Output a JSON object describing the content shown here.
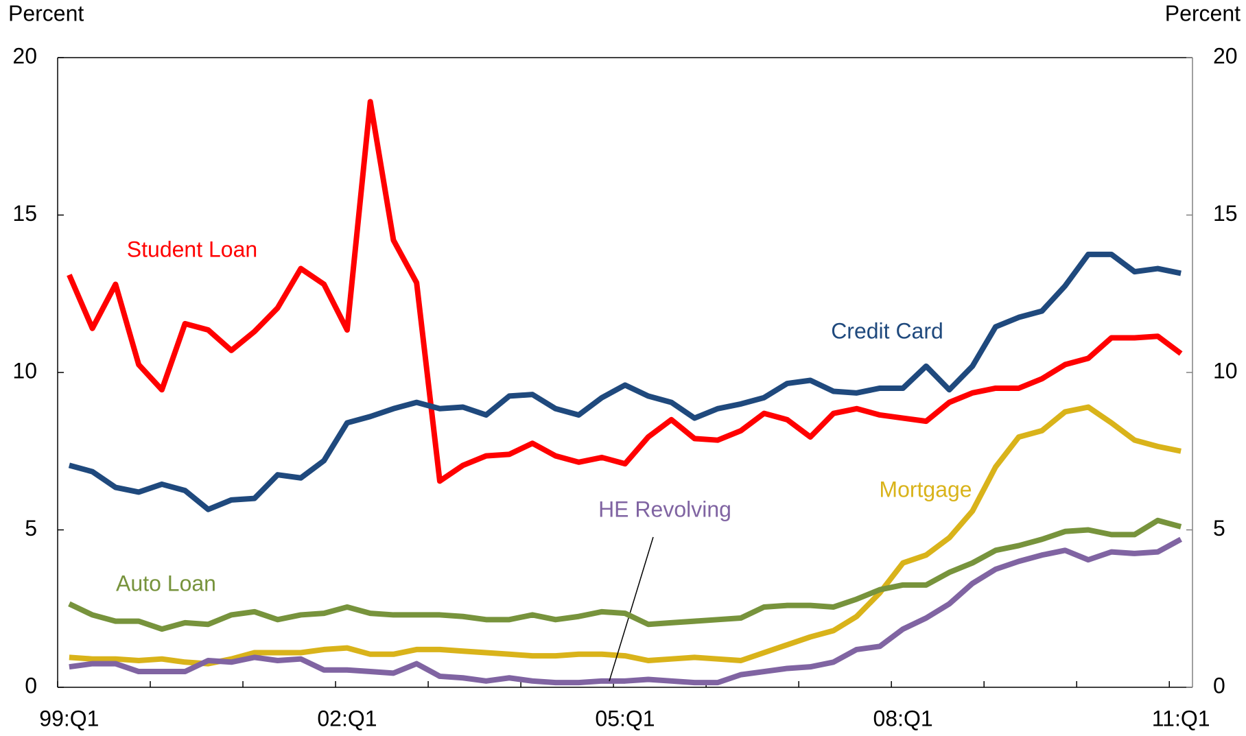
{
  "chart_data": {
    "type": "line",
    "ylabel": "Percent",
    "y2label": "Percent",
    "categories": [
      "99:Q1",
      null,
      null,
      null,
      null,
      null,
      null,
      null,
      null,
      null,
      null,
      null,
      "02:Q1",
      null,
      null,
      null,
      null,
      null,
      null,
      null,
      null,
      null,
      null,
      null,
      "05:Q1",
      null,
      null,
      null,
      null,
      null,
      null,
      null,
      null,
      null,
      null,
      null,
      "08:Q1",
      null,
      null,
      null,
      null,
      null,
      null,
      null,
      null,
      null,
      null,
      null,
      "11:Q1"
    ],
    "ylim": [
      0,
      20
    ],
    "yticks": [
      0,
      5,
      10,
      15,
      20
    ],
    "y2lim": [
      0,
      20
    ],
    "y2ticks": [
      0,
      5,
      10,
      15,
      20
    ],
    "grid": false,
    "series": [
      {
        "name": "Student Loan",
        "color": "#ff0000",
        "values": [
          13.1,
          11.4,
          12.8,
          10.25,
          9.45,
          11.55,
          11.35,
          10.7,
          11.3,
          12.05,
          13.3,
          12.8,
          11.35,
          18.6,
          14.2,
          12.85,
          6.55,
          7.05,
          7.35,
          7.4,
          7.75,
          7.35,
          7.15,
          7.3,
          7.1,
          7.95,
          8.5,
          7.9,
          7.85,
          8.15,
          8.7,
          8.5,
          7.95,
          8.7,
          8.85,
          8.65,
          8.55,
          8.45,
          9.05,
          9.35,
          9.5,
          9.5,
          9.8,
          10.25,
          10.45,
          11.1,
          11.1,
          11.15,
          10.6
        ]
      },
      {
        "name": "Credit Card",
        "color": "#1f497d",
        "values": [
          7.05,
          6.85,
          6.35,
          6.2,
          6.45,
          6.25,
          5.65,
          5.95,
          6.0,
          6.75,
          6.65,
          7.2,
          8.4,
          8.6,
          8.85,
          9.05,
          8.85,
          8.9,
          8.65,
          9.25,
          9.3,
          8.85,
          8.65,
          9.2,
          9.6,
          9.25,
          9.05,
          8.55,
          8.85,
          9.0,
          9.2,
          9.65,
          9.75,
          9.4,
          9.35,
          9.5,
          9.5,
          10.2,
          9.45,
          10.2,
          11.45,
          11.75,
          11.95,
          12.75,
          13.75,
          13.75,
          13.2,
          13.3,
          13.15
        ]
      },
      {
        "name": "Mortgage",
        "color": "#d9b31a",
        "values": [
          0.95,
          0.9,
          0.9,
          0.85,
          0.9,
          0.8,
          0.75,
          0.9,
          1.1,
          1.1,
          1.1,
          1.2,
          1.25,
          1.05,
          1.05,
          1.2,
          1.2,
          1.15,
          1.1,
          1.05,
          1.0,
          1.0,
          1.05,
          1.05,
          1.0,
          0.85,
          0.9,
          0.95,
          0.9,
          0.85,
          1.1,
          1.35,
          1.6,
          1.8,
          2.25,
          3.0,
          3.95,
          4.2,
          4.75,
          5.6,
          7.0,
          7.95,
          8.15,
          8.75,
          8.9,
          8.4,
          7.85,
          7.65,
          7.5
        ]
      },
      {
        "name": "HE Revolving",
        "color": "#8064a2",
        "values": [
          0.65,
          0.75,
          0.75,
          0.5,
          0.5,
          0.5,
          0.85,
          0.8,
          0.95,
          0.85,
          0.9,
          0.55,
          0.55,
          0.5,
          0.45,
          0.75,
          0.35,
          0.3,
          0.2,
          0.3,
          0.2,
          0.15,
          0.15,
          0.2,
          0.2,
          0.25,
          0.2,
          0.15,
          0.15,
          0.4,
          0.5,
          0.6,
          0.65,
          0.8,
          1.2,
          1.3,
          1.85,
          2.2,
          2.65,
          3.3,
          3.75,
          4.0,
          4.2,
          4.35,
          4.05,
          4.3,
          4.25,
          4.3,
          4.7
        ]
      },
      {
        "name": "Auto Loan",
        "color": "#77933c",
        "values": [
          2.65,
          2.3,
          2.1,
          2.1,
          1.85,
          2.05,
          2.0,
          2.3,
          2.4,
          2.15,
          2.3,
          2.35,
          2.55,
          2.35,
          2.3,
          2.3,
          2.3,
          2.25,
          2.15,
          2.15,
          2.3,
          2.15,
          2.25,
          2.4,
          2.35,
          2.0,
          2.05,
          2.1,
          2.15,
          2.2,
          2.55,
          2.6,
          2.6,
          2.55,
          2.8,
          3.1,
          3.25,
          3.25,
          3.65,
          3.95,
          4.35,
          4.5,
          4.7,
          4.95,
          5.0,
          4.85,
          4.85,
          5.3,
          5.1
        ]
      }
    ]
  }
}
